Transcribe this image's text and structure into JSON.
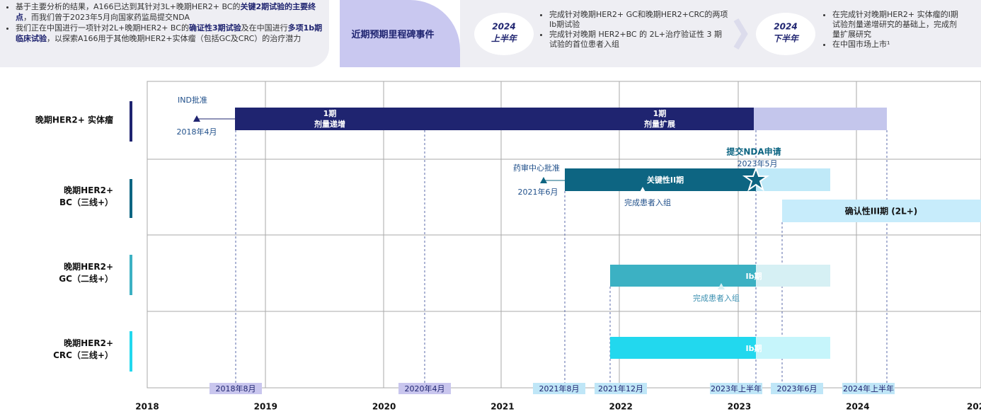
{
  "summary": {
    "bullets": [
      [
        "基于主要分析的结果，A166已达到其针对3L+晚期HER2+ BC的",
        "关键2期试验的主要终点",
        "，而我们曾于2023年5月向国家药监局提交NDA"
      ],
      [
        "我们正在中国进行一项针对2L+晚期HER2+ BC的",
        "确证性3期试验",
        "及在中国进行",
        "多项1b期临床试验",
        "，以探索A166用于其他晚期HER2+实体瘤（包括GC及CRC）的治疗潜力"
      ]
    ]
  },
  "milestones": {
    "title": "近期预期里程碑事件",
    "periods": [
      {
        "year": "2024",
        "half": "上半年",
        "items": [
          "完成针对晚期HER2+ GC和晚期HER2+CRC的两项Ib期试验",
          "完成针对晚期 HER2+BC 的 2L+治疗验证性 3 期试验的首位患者入组"
        ]
      },
      {
        "year": "2024",
        "half": "下半年",
        "items": [
          "在完成针对晚期HER2+ 实体瘤的I期试验剂量递增研究的基础上，完成剂量扩展研究",
          "在中国市场上市¹"
        ]
      }
    ]
  },
  "rows": [
    {
      "label": [
        "晚期HER2+ 实体瘤"
      ]
    },
    {
      "label": [
        "晚期HER2+",
        "BC（三线+）"
      ]
    },
    {
      "label": [
        "晚期HER2+",
        "GC（二线+）"
      ]
    },
    {
      "label": [
        "晚期HER2+",
        "CRC（三线+）"
      ]
    }
  ],
  "bars": {
    "phase1_escalation": [
      "1期",
      "剂量递增"
    ],
    "phase1_expansion": [
      "1期",
      "剂量扩展"
    ],
    "pivotal2": "关键性II期",
    "confirm3": "确认性III期 (2L+)",
    "ib_gc": "Ib期",
    "ib_crc": "Ib期"
  },
  "annotations": {
    "ind": "IND批准",
    "ind_date": "2018年4月",
    "cde": "药审中心批准",
    "cde_date": "2021年6月",
    "bc_enroll": "完成患者入组",
    "nda": "提交NDA申请",
    "nda_date": "2023年5月",
    "gc_enroll": "完成患者入组"
  },
  "date_tags": [
    "2018年8月",
    "2020年4月",
    "2021年8月",
    "2021年12月",
    "2023年上半年",
    "2023年6月",
    "2024年上半年"
  ],
  "years": [
    "2018",
    "2019",
    "2020",
    "2021",
    "2022",
    "2023",
    "2024",
    "202"
  ]
}
